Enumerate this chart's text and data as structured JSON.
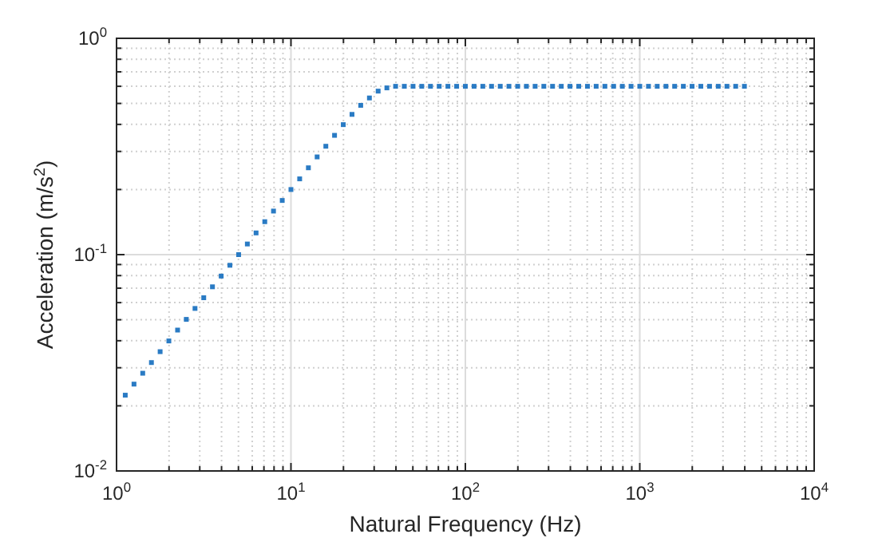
{
  "chart_data": {
    "type": "scatter",
    "xlabel": "Natural Frequency (Hz)",
    "ylabel": "Acceleration (m/s$^{2}$)",
    "log": "xy",
    "grid": true,
    "marker": "square",
    "xlim": [
      1,
      10000
    ],
    "ylim": [
      0.01,
      1
    ],
    "xticks": [
      {
        "value": 1,
        "label": "10$^{0}$"
      },
      {
        "value": 10,
        "label": "10$^{1}$"
      },
      {
        "value": 100,
        "label": "10$^{2}$"
      },
      {
        "value": 1000,
        "label": "10$^{3}$"
      },
      {
        "value": 10000,
        "label": "10$^{4}$"
      }
    ],
    "yticks": [
      {
        "value": 0.01,
        "label": "10$^{-2}$"
      },
      {
        "value": 0.1,
        "label": "10$^{-1}$"
      },
      {
        "value": 1,
        "label": "10$^{0}$"
      }
    ],
    "series": [
      {
        "color": "#2a7bc4",
        "x": [
          1.122,
          1.259,
          1.413,
          1.585,
          1.778,
          1.995,
          2.239,
          2.512,
          2.818,
          3.162,
          3.548,
          3.981,
          4.467,
          5.012,
          5.623,
          6.31,
          7.079,
          7.943,
          8.913,
          10,
          11.22,
          12.59,
          14.13,
          15.85,
          17.78,
          19.95,
          22.39,
          25.12,
          28.18,
          31.62,
          35.48,
          39.81,
          44.67,
          50.12,
          56.23,
          63.1,
          70.79,
          79.43,
          89.13,
          100,
          112.2,
          125.9,
          141.3,
          158.5,
          177.8,
          199.5,
          223.9,
          251.2,
          281.8,
          316.2,
          354.8,
          398.1,
          446.7,
          501.2,
          562.3,
          631,
          707.9,
          794.3,
          891.3,
          1000,
          1122,
          1259,
          1413,
          1585,
          1778,
          1995,
          2239,
          2512,
          2818,
          3162,
          3548,
          3981
        ],
        "values": [
          0.0224,
          0.0252,
          0.0283,
          0.0317,
          0.0356,
          0.0399,
          0.0448,
          0.0502,
          0.0564,
          0.0632,
          0.071,
          0.0796,
          0.0893,
          0.1,
          0.112,
          0.126,
          0.142,
          0.159,
          0.178,
          0.2,
          0.224,
          0.252,
          0.283,
          0.317,
          0.356,
          0.399,
          0.445,
          0.49,
          0.53,
          0.57,
          0.59,
          0.6,
          0.6,
          0.6,
          0.6,
          0.6,
          0.6,
          0.6,
          0.6,
          0.6,
          0.6,
          0.6,
          0.6,
          0.6,
          0.6,
          0.6,
          0.6,
          0.6,
          0.6,
          0.6,
          0.6,
          0.6,
          0.6,
          0.6,
          0.6,
          0.6,
          0.6,
          0.6,
          0.6,
          0.6,
          0.6,
          0.6,
          0.6,
          0.6,
          0.6,
          0.6,
          0.6,
          0.6,
          0.6,
          0.6,
          0.6,
          0.6
        ]
      }
    ]
  }
}
